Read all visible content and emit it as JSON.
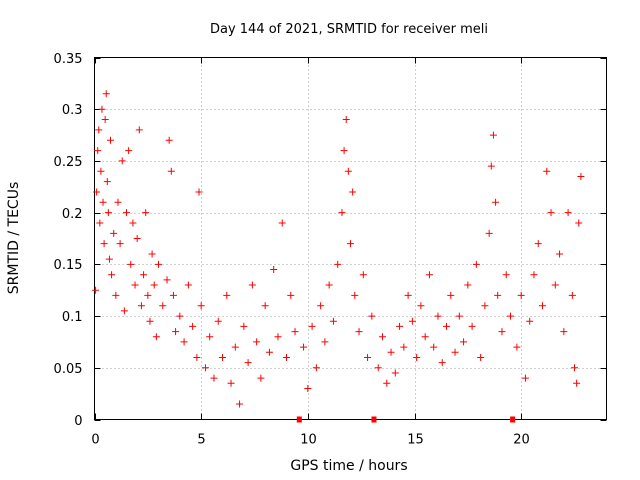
{
  "chart_data": {
    "type": "scatter",
    "title": "Day 144 of 2021, SRMTID for receiver meli",
    "xlabel": "GPS time / hours",
    "ylabel": "SRMTID / TECUs",
    "xlim": [
      0,
      24
    ],
    "ylim": [
      0,
      0.35
    ],
    "grid": true,
    "marker": "+",
    "color": "#ff0000",
    "x_ticks": [
      0,
      5,
      10,
      15,
      20
    ],
    "x_tick_labels": [
      "0",
      "5",
      "10",
      "15",
      "20"
    ],
    "y_ticks": [
      0,
      0.05,
      0.1,
      0.15,
      0.2,
      0.25,
      0.3,
      0.35
    ],
    "y_tick_labels": [
      "0",
      "0.05",
      "0.1",
      "0.15",
      "0.2",
      "0.25",
      "0.3",
      "0.35"
    ],
    "gap_markers_x": [
      9.6,
      13.1,
      19.6
    ],
    "series": [
      {
        "name": "SRMTID",
        "points": [
          [
            0.05,
            0.125
          ],
          [
            0.1,
            0.22
          ],
          [
            0.15,
            0.26
          ],
          [
            0.2,
            0.28
          ],
          [
            0.25,
            0.19
          ],
          [
            0.3,
            0.24
          ],
          [
            0.35,
            0.3
          ],
          [
            0.4,
            0.21
          ],
          [
            0.45,
            0.17
          ],
          [
            0.5,
            0.29
          ],
          [
            0.55,
            0.315
          ],
          [
            0.6,
            0.23
          ],
          [
            0.65,
            0.2
          ],
          [
            0.7,
            0.155
          ],
          [
            0.75,
            0.27
          ],
          [
            0.8,
            0.14
          ],
          [
            0.9,
            0.18
          ],
          [
            1.0,
            0.12
          ],
          [
            1.1,
            0.21
          ],
          [
            1.2,
            0.17
          ],
          [
            1.3,
            0.25
          ],
          [
            1.4,
            0.105
          ],
          [
            1.5,
            0.2
          ],
          [
            1.6,
            0.26
          ],
          [
            1.7,
            0.15
          ],
          [
            1.8,
            0.19
          ],
          [
            1.9,
            0.13
          ],
          [
            2.0,
            0.175
          ],
          [
            2.1,
            0.28
          ],
          [
            2.2,
            0.11
          ],
          [
            2.3,
            0.14
          ],
          [
            2.4,
            0.2
          ],
          [
            2.5,
            0.12
          ],
          [
            2.6,
            0.095
          ],
          [
            2.7,
            0.16
          ],
          [
            2.8,
            0.13
          ],
          [
            2.9,
            0.08
          ],
          [
            3.0,
            0.15
          ],
          [
            3.2,
            0.11
          ],
          [
            3.4,
            0.135
          ],
          [
            3.5,
            0.27
          ],
          [
            3.6,
            0.24
          ],
          [
            3.7,
            0.12
          ],
          [
            3.8,
            0.085
          ],
          [
            4.0,
            0.1
          ],
          [
            4.2,
            0.075
          ],
          [
            4.4,
            0.13
          ],
          [
            4.6,
            0.09
          ],
          [
            4.8,
            0.06
          ],
          [
            4.9,
            0.22
          ],
          [
            5.0,
            0.11
          ],
          [
            5.2,
            0.05
          ],
          [
            5.4,
            0.08
          ],
          [
            5.6,
            0.04
          ],
          [
            5.8,
            0.095
          ],
          [
            6.0,
            0.06
          ],
          [
            6.2,
            0.12
          ],
          [
            6.4,
            0.035
          ],
          [
            6.6,
            0.07
          ],
          [
            6.8,
            0.015
          ],
          [
            7.0,
            0.09
          ],
          [
            7.2,
            0.055
          ],
          [
            7.4,
            0.13
          ],
          [
            7.6,
            0.075
          ],
          [
            7.8,
            0.04
          ],
          [
            8.0,
            0.11
          ],
          [
            8.2,
            0.065
          ],
          [
            8.4,
            0.145
          ],
          [
            8.6,
            0.08
          ],
          [
            8.8,
            0.19
          ],
          [
            9.0,
            0.06
          ],
          [
            9.2,
            0.12
          ],
          [
            9.4,
            0.085
          ],
          [
            9.8,
            0.07
          ],
          [
            10.0,
            0.03
          ],
          [
            10.2,
            0.09
          ],
          [
            10.4,
            0.05
          ],
          [
            10.6,
            0.11
          ],
          [
            10.8,
            0.075
          ],
          [
            11.0,
            0.13
          ],
          [
            11.2,
            0.095
          ],
          [
            11.4,
            0.15
          ],
          [
            11.6,
            0.2
          ],
          [
            11.7,
            0.26
          ],
          [
            11.8,
            0.29
          ],
          [
            11.9,
            0.24
          ],
          [
            12.0,
            0.17
          ],
          [
            12.1,
            0.22
          ],
          [
            12.2,
            0.12
          ],
          [
            12.4,
            0.085
          ],
          [
            12.6,
            0.14
          ],
          [
            12.8,
            0.06
          ],
          [
            13.0,
            0.1
          ],
          [
            13.3,
            0.05
          ],
          [
            13.5,
            0.08
          ],
          [
            13.7,
            0.035
          ],
          [
            13.9,
            0.065
          ],
          [
            14.1,
            0.045
          ],
          [
            14.3,
            0.09
          ],
          [
            14.5,
            0.07
          ],
          [
            14.7,
            0.12
          ],
          [
            14.9,
            0.095
          ],
          [
            15.1,
            0.06
          ],
          [
            15.3,
            0.11
          ],
          [
            15.5,
            0.08
          ],
          [
            15.7,
            0.14
          ],
          [
            15.9,
            0.07
          ],
          [
            16.1,
            0.1
          ],
          [
            16.3,
            0.055
          ],
          [
            16.5,
            0.09
          ],
          [
            16.7,
            0.12
          ],
          [
            16.9,
            0.065
          ],
          [
            17.1,
            0.1
          ],
          [
            17.3,
            0.075
          ],
          [
            17.5,
            0.13
          ],
          [
            17.7,
            0.09
          ],
          [
            17.9,
            0.15
          ],
          [
            18.1,
            0.06
          ],
          [
            18.3,
            0.11
          ],
          [
            18.5,
            0.18
          ],
          [
            18.6,
            0.245
          ],
          [
            18.7,
            0.275
          ],
          [
            18.8,
            0.21
          ],
          [
            18.9,
            0.12
          ],
          [
            19.1,
            0.085
          ],
          [
            19.3,
            0.14
          ],
          [
            19.5,
            0.1
          ],
          [
            19.8,
            0.07
          ],
          [
            20.0,
            0.12
          ],
          [
            20.2,
            0.04
          ],
          [
            20.4,
            0.095
          ],
          [
            20.6,
            0.14
          ],
          [
            20.8,
            0.17
          ],
          [
            21.0,
            0.11
          ],
          [
            21.2,
            0.24
          ],
          [
            21.4,
            0.2
          ],
          [
            21.6,
            0.13
          ],
          [
            21.8,
            0.16
          ],
          [
            22.0,
            0.085
          ],
          [
            22.2,
            0.2
          ],
          [
            22.4,
            0.12
          ],
          [
            22.5,
            0.05
          ],
          [
            22.6,
            0.035
          ],
          [
            22.7,
            0.19
          ],
          [
            22.8,
            0.235
          ]
        ]
      }
    ]
  }
}
